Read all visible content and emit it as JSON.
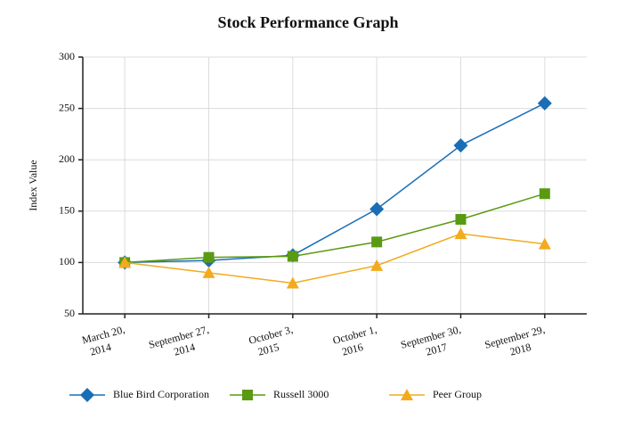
{
  "chart_data": {
    "type": "line",
    "title": "Stock Performance Graph",
    "y_label": "Index Value",
    "categories": [
      [
        "March 20,",
        "2014"
      ],
      [
        "September 27,",
        "2014"
      ],
      [
        "October 3,",
        "2015"
      ],
      [
        "October 1,",
        "2016"
      ],
      [
        "September 30,",
        "2017"
      ],
      [
        "September 29,",
        "2018"
      ]
    ],
    "series": [
      {
        "name": "Blue Bird Corporation",
        "color": "#1a6eb5",
        "marker": "diamond",
        "values": [
          100,
          102,
          107,
          152,
          214,
          255
        ]
      },
      {
        "name": "Russell 3000",
        "color": "#5a9a12",
        "marker": "square",
        "values": [
          100,
          105,
          106,
          120,
          142,
          167
        ]
      },
      {
        "name": "Peer Group",
        "color": "#f2ab1f",
        "marker": "triangle",
        "values": [
          100,
          90,
          80,
          97,
          128,
          118
        ]
      }
    ],
    "ylim": [
      50,
      300
    ],
    "yticks": [
      50,
      100,
      150,
      200,
      250,
      300
    ],
    "grid": true,
    "legend": "bottom"
  }
}
